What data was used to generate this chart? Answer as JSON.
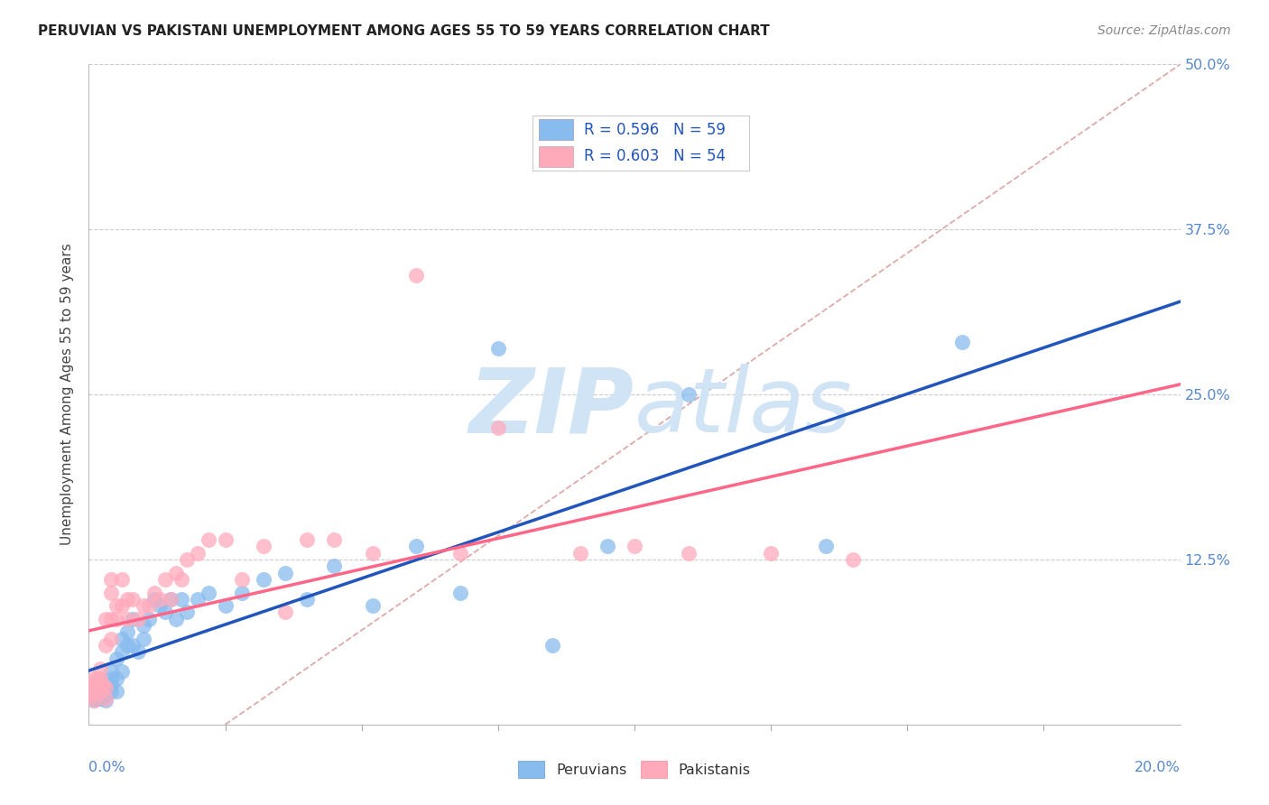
{
  "title": "PERUVIAN VS PAKISTANI UNEMPLOYMENT AMONG AGES 55 TO 59 YEARS CORRELATION CHART",
  "source": "Source: ZipAtlas.com",
  "ylabel": "Unemployment Among Ages 55 to 59 years",
  "xlim": [
    0.0,
    0.2
  ],
  "ylim": [
    0.0,
    0.5
  ],
  "yticks": [
    0.0,
    0.125,
    0.25,
    0.375,
    0.5
  ],
  "ytick_labels": [
    "",
    "12.5%",
    "25.0%",
    "37.5%",
    "50.0%"
  ],
  "peruvian_color": "#88BBEE",
  "pakistani_color": "#FFAABB",
  "peruvian_edge_color": "#6699CC",
  "pakistani_edge_color": "#FF8899",
  "peruvian_line_color": "#2255BB",
  "pakistani_line_color": "#FF6688",
  "dashed_line_color": "#DDAAAA",
  "tick_label_color": "#5588CC",
  "legend_text_color": "#2255BB",
  "title_color": "#222222",
  "source_color": "#888888",
  "ylabel_color": "#444444",
  "grid_color": "#CCCCCC",
  "watermark_color": "#D0E4F5",
  "legend_peruvian_text": "R = 0.596   N = 59",
  "legend_pakistani_text": "R = 0.603   N = 54",
  "peruvian_x": [
    0.0005,
    0.001,
    0.001,
    0.001,
    0.0015,
    0.0015,
    0.002,
    0.002,
    0.002,
    0.002,
    0.0025,
    0.0025,
    0.003,
    0.003,
    0.003,
    0.003,
    0.0035,
    0.004,
    0.004,
    0.004,
    0.004,
    0.005,
    0.005,
    0.005,
    0.006,
    0.006,
    0.006,
    0.007,
    0.007,
    0.008,
    0.008,
    0.009,
    0.01,
    0.01,
    0.011,
    0.012,
    0.013,
    0.014,
    0.015,
    0.016,
    0.017,
    0.018,
    0.02,
    0.022,
    0.025,
    0.028,
    0.032,
    0.036,
    0.04,
    0.045,
    0.052,
    0.06,
    0.068,
    0.075,
    0.085,
    0.095,
    0.11,
    0.135,
    0.16
  ],
  "peruvian_y": [
    0.02,
    0.018,
    0.022,
    0.025,
    0.02,
    0.025,
    0.02,
    0.025,
    0.03,
    0.035,
    0.022,
    0.03,
    0.018,
    0.022,
    0.025,
    0.03,
    0.028,
    0.025,
    0.03,
    0.035,
    0.04,
    0.025,
    0.035,
    0.05,
    0.04,
    0.055,
    0.065,
    0.06,
    0.07,
    0.06,
    0.08,
    0.055,
    0.075,
    0.065,
    0.08,
    0.095,
    0.09,
    0.085,
    0.095,
    0.08,
    0.095,
    0.085,
    0.095,
    0.1,
    0.09,
    0.1,
    0.11,
    0.115,
    0.095,
    0.12,
    0.09,
    0.135,
    0.1,
    0.285,
    0.06,
    0.135,
    0.25,
    0.135,
    0.29
  ],
  "pakistani_x": [
    0.0005,
    0.001,
    0.001,
    0.001,
    0.001,
    0.0015,
    0.0015,
    0.002,
    0.002,
    0.002,
    0.002,
    0.0025,
    0.003,
    0.003,
    0.003,
    0.003,
    0.004,
    0.004,
    0.004,
    0.004,
    0.005,
    0.005,
    0.006,
    0.006,
    0.007,
    0.007,
    0.008,
    0.009,
    0.01,
    0.011,
    0.012,
    0.013,
    0.014,
    0.015,
    0.016,
    0.017,
    0.018,
    0.02,
    0.022,
    0.025,
    0.028,
    0.032,
    0.036,
    0.04,
    0.045,
    0.052,
    0.06,
    0.068,
    0.075,
    0.09,
    0.1,
    0.11,
    0.125,
    0.14
  ],
  "pakistani_y": [
    0.022,
    0.018,
    0.025,
    0.03,
    0.035,
    0.028,
    0.035,
    0.025,
    0.03,
    0.035,
    0.042,
    0.03,
    0.02,
    0.028,
    0.06,
    0.08,
    0.065,
    0.08,
    0.1,
    0.11,
    0.08,
    0.09,
    0.09,
    0.11,
    0.08,
    0.095,
    0.095,
    0.08,
    0.09,
    0.09,
    0.1,
    0.095,
    0.11,
    0.095,
    0.115,
    0.11,
    0.125,
    0.13,
    0.14,
    0.14,
    0.11,
    0.135,
    0.085,
    0.14,
    0.14,
    0.13,
    0.34,
    0.13,
    0.225,
    0.13,
    0.135,
    0.13,
    0.13,
    0.125
  ]
}
